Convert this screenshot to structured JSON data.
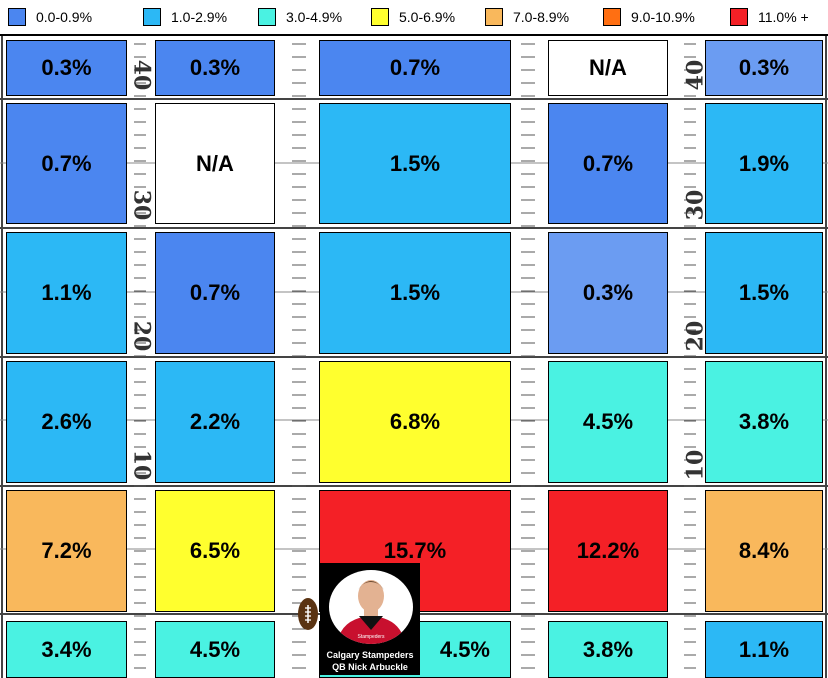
{
  "legend": [
    {
      "label": "0.0-0.9%",
      "color": "#4B86F0"
    },
    {
      "label": "1.0-2.9%",
      "color": "#2CB8F5"
    },
    {
      "label": "3.0-4.9%",
      "color": "#4AF2E2"
    },
    {
      "label": "5.0-6.9%",
      "color": "#FFFF2E"
    },
    {
      "label": "7.0-8.9%",
      "color": "#F9B85C"
    },
    {
      "label": "9.0-10.9%",
      "color": "#FF6F12"
    },
    {
      "label": "11.0% +",
      "color": "#F42026"
    }
  ],
  "yard_numbers": [
    "40",
    "30",
    "20",
    "10"
  ],
  "chart_data": {
    "type": "heatmap",
    "rows": [
      {
        "values": [
          "0.3%",
          "0.3%",
          "0.7%",
          "N/A",
          "0.3%"
        ]
      },
      {
        "values": [
          "0.7%",
          "N/A",
          "1.5%",
          "0.7%",
          "1.9%"
        ]
      },
      {
        "values": [
          "1.1%",
          "0.7%",
          "1.5%",
          "0.3%",
          "1.5%"
        ]
      },
      {
        "values": [
          "2.6%",
          "2.2%",
          "6.8%",
          "4.5%",
          "3.8%"
        ]
      },
      {
        "values": [
          "7.2%",
          "6.5%",
          "15.7%",
          "12.2%",
          "8.4%"
        ]
      },
      {
        "values": [
          "3.4%",
          "4.5%",
          "4.5%",
          "3.8%",
          "1.1%"
        ]
      }
    ],
    "cell_colors": [
      [
        "#4B86F0",
        "#4B86F0",
        "#4B86F0",
        "#FFFFFF",
        "#6B9CF2"
      ],
      [
        "#4B86F0",
        "#FFFFFF",
        "#2CB8F5",
        "#4B86F0",
        "#2CB8F5"
      ],
      [
        "#2CB8F5",
        "#4B86F0",
        "#2CB8F5",
        "#6B9CF2",
        "#2CB8F5"
      ],
      [
        "#2CB8F5",
        "#2CB8F5",
        "#FFFF2E",
        "#4AF2E2",
        "#4AF2E2"
      ],
      [
        "#F9B85C",
        "#FFFF2E",
        "#F42026",
        "#F42026",
        "#F9B85C"
      ],
      [
        "#4AF2E2",
        "#4AF2E2",
        "#4AF2E2",
        "#4AF2E2",
        "#2CB8F5"
      ]
    ]
  },
  "qb_card": {
    "team": "Calgary Stampeders",
    "player": "QB Nick Arbuckle",
    "jersey_logo": "Stampeders"
  }
}
